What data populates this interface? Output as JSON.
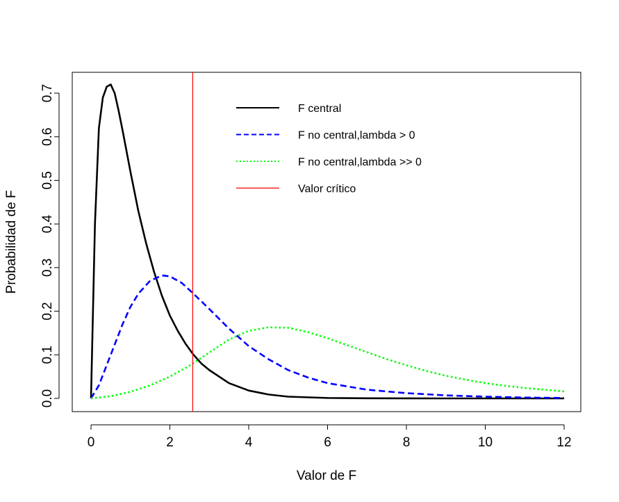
{
  "chart_data": {
    "type": "line",
    "title": "",
    "xlabel": "Valor de F",
    "ylabel": "Probabilidad de F",
    "xlim": [
      0,
      12
    ],
    "ylim": [
      0,
      0.7
    ],
    "x_ticks": [
      0,
      2,
      4,
      6,
      8,
      10,
      12
    ],
    "x_tick_labels": [
      "0",
      "2",
      "4",
      "6",
      "8",
      "10",
      "12"
    ],
    "y_ticks": [
      0.0,
      0.1,
      0.2,
      0.3,
      0.4,
      0.5,
      0.6,
      0.7
    ],
    "y_tick_labels": [
      "0.0",
      "0.1",
      "0.2",
      "0.3",
      "0.4",
      "0.5",
      "0.6",
      "0.7"
    ],
    "grid": false,
    "legend_position": "top-right",
    "critical_value": 2.58,
    "series": [
      {
        "name": "F central",
        "color": "#000000",
        "style": "solid",
        "x": [
          0,
          0.05,
          0.1,
          0.2,
          0.3,
          0.4,
          0.5,
          0.6,
          0.7,
          0.8,
          1.0,
          1.2,
          1.4,
          1.6,
          1.8,
          2.0,
          2.2,
          2.4,
          2.6,
          2.8,
          3.0,
          3.5,
          4.0,
          4.5,
          5.0,
          6.0,
          7.0,
          8.0,
          9.0,
          10.0,
          11.0,
          12.0
        ],
        "y": [
          0,
          0.2,
          0.4,
          0.62,
          0.69,
          0.715,
          0.72,
          0.7,
          0.66,
          0.615,
          0.52,
          0.43,
          0.355,
          0.29,
          0.235,
          0.19,
          0.155,
          0.125,
          0.1,
          0.08,
          0.065,
          0.035,
          0.018,
          0.009,
          0.004,
          0.001,
          0.0003,
          0.0001,
          0,
          0,
          0,
          0
        ]
      },
      {
        "name": "F no central,lambda > 0",
        "color": "#0000ff",
        "style": "dashed",
        "x": [
          0,
          0.2,
          0.5,
          0.8,
          1.0,
          1.2,
          1.5,
          1.8,
          2.0,
          2.3,
          2.6,
          3.0,
          3.5,
          4.0,
          4.5,
          5.0,
          5.5,
          6.0,
          7.0,
          8.0,
          9.0,
          10.0,
          11.0,
          12.0
        ],
        "y": [
          0,
          0.03,
          0.1,
          0.17,
          0.21,
          0.24,
          0.27,
          0.282,
          0.28,
          0.265,
          0.24,
          0.205,
          0.16,
          0.12,
          0.09,
          0.065,
          0.048,
          0.035,
          0.02,
          0.012,
          0.007,
          0.004,
          0.002,
          0.001
        ]
      },
      {
        "name": "F no central,lambda >> 0",
        "color": "#00ff00",
        "style": "dotted",
        "x": [
          0,
          0.5,
          1.0,
          1.5,
          2.0,
          2.5,
          3.0,
          3.5,
          4.0,
          4.5,
          5.0,
          5.5,
          6.0,
          6.5,
          7.0,
          7.5,
          8.0,
          8.5,
          9.0,
          9.5,
          10.0,
          10.5,
          11.0,
          11.5,
          12.0
        ],
        "y": [
          0,
          0.005,
          0.015,
          0.03,
          0.05,
          0.075,
          0.105,
          0.135,
          0.155,
          0.163,
          0.162,
          0.152,
          0.138,
          0.122,
          0.106,
          0.09,
          0.076,
          0.063,
          0.052,
          0.043,
          0.035,
          0.029,
          0.024,
          0.02,
          0.016
        ]
      }
    ],
    "legend": [
      {
        "label": "F central",
        "color": "#000000",
        "style": "solid"
      },
      {
        "label": "F no central,lambda > 0",
        "color": "#0000ff",
        "style": "dashed"
      },
      {
        "label": "F no central,lambda >> 0",
        "color": "#00ff00",
        "style": "dotted"
      },
      {
        "label": "Valor crítico",
        "color": "#ff0000",
        "style": "solid"
      }
    ]
  }
}
